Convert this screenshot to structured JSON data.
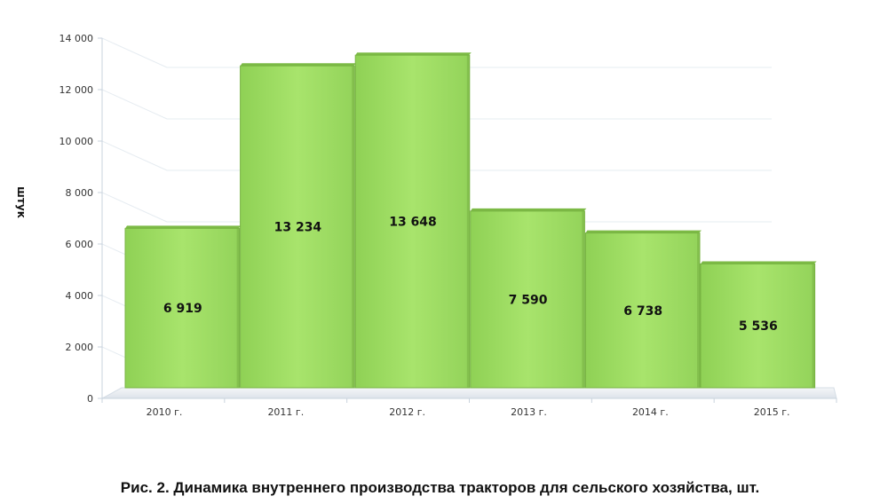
{
  "chart_data": {
    "type": "bar",
    "categories": [
      "2010 г.",
      "2011 г.",
      "2012 г.",
      "2013 г.",
      "2014 г.",
      "2015 г."
    ],
    "values": [
      6919,
      13234,
      13648,
      7590,
      6738,
      5536
    ],
    "data_labels": [
      "6 919",
      "13 234",
      "13 648",
      "7 590",
      "6 738",
      "5 536"
    ],
    "ylabel": "штук",
    "xlabel": "",
    "ylim": [
      0,
      14000
    ],
    "yticks": [
      0,
      2000,
      4000,
      6000,
      8000,
      10000,
      12000,
      14000
    ],
    "ytick_labels": [
      "0",
      "2 000",
      "4 000",
      "6 000",
      "8 000",
      "10 000",
      "12 000",
      "14 000"
    ],
    "grid": true,
    "style": "3d",
    "bar_color": "#9ddc5e"
  },
  "caption": "Рис. 2. Динамика внутреннего производства тракторов для сельского хозяйства, шт."
}
